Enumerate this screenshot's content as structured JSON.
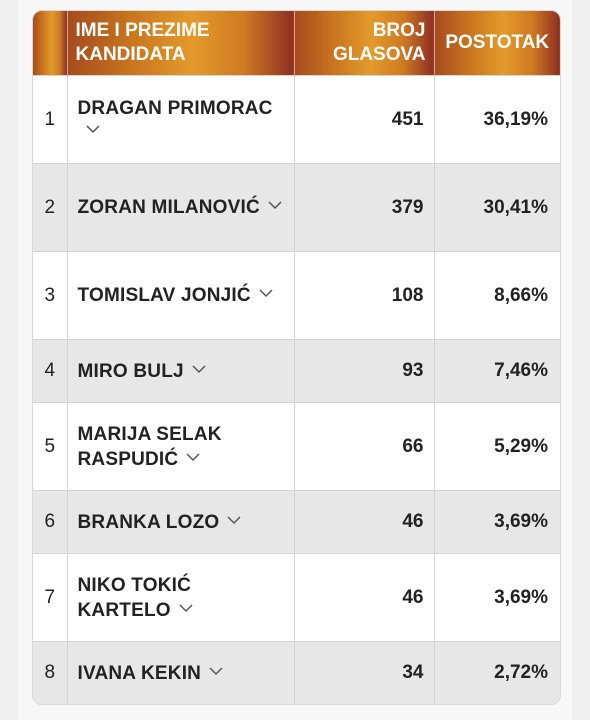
{
  "table": {
    "headers": {
      "number": "",
      "name": "IME I PREZIME KANDIDATA",
      "votes": "BROJ GLASOVA",
      "percent": "POSTOTAK"
    },
    "rows": [
      {
        "num": "1",
        "name": "DRAGAN PRIMORAC",
        "votes": "451",
        "pct": "36,19%"
      },
      {
        "num": "2",
        "name": "ZORAN MILANOVIĆ",
        "votes": "379",
        "pct": "30,41%"
      },
      {
        "num": "3",
        "name": "TOMISLAV JONJIĆ",
        "votes": "108",
        "pct": "8,66%"
      },
      {
        "num": "4",
        "name": "MIRO BULJ",
        "votes": "93",
        "pct": "7,46%"
      },
      {
        "num": "5",
        "name": "MARIJA SELAK RASPUDIĆ",
        "votes": "66",
        "pct": "5,29%"
      },
      {
        "num": "6",
        "name": "BRANKA LOZO",
        "votes": "46",
        "pct": "3,69%"
      },
      {
        "num": "7",
        "name": "NIKO TOKIĆ KARTELO",
        "votes": "46",
        "pct": "3,69%"
      },
      {
        "num": "8",
        "name": "IVANA KEKIN",
        "votes": "34",
        "pct": "2,72%"
      }
    ]
  },
  "icons": {
    "expand": "chevron-down-icon"
  },
  "colors": {
    "header_gradient_start": "#a64a1e",
    "header_gradient_mid": "#e39a2b",
    "header_gradient_end": "#8e2f22",
    "header_text": "#ffffff",
    "alt_row": "#e7e7e7",
    "text": "#222222"
  }
}
